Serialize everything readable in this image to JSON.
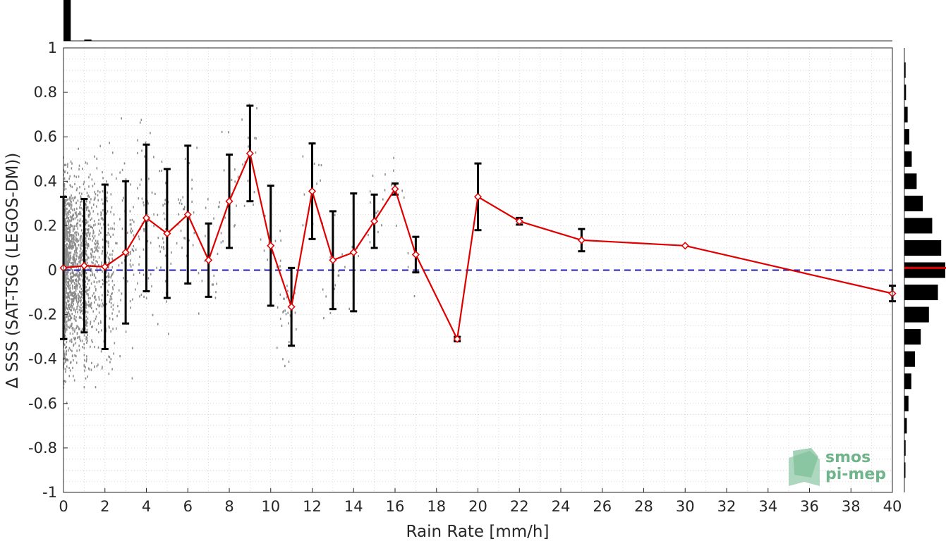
{
  "chart_data": {
    "type": "scatter",
    "xlabel": "Rain Rate [mm/h]",
    "ylabel": "Δ SSS (SAT-TSG (LEGOS-DM))",
    "xlim": [
      0,
      40
    ],
    "ylim": [
      -1,
      1
    ],
    "xticks": [
      "0",
      "2",
      "4",
      "6",
      "8",
      "10",
      "12",
      "14",
      "16",
      "18",
      "20",
      "22",
      "24",
      "26",
      "28",
      "30",
      "32",
      "34",
      "36",
      "38",
      "40"
    ],
    "yticks": [
      "1",
      "0.8",
      "0.6",
      "0.4",
      "0.2",
      "0",
      "-0.2",
      "-0.4",
      "-0.6",
      "-0.8",
      "-1"
    ],
    "grid": true,
    "reference_line": {
      "y": 0,
      "style": "dashed",
      "color": "#1f1fb4"
    },
    "mean_series": {
      "color": "#e00000",
      "marker": "diamond",
      "points": [
        {
          "x": 0,
          "y": 0.01,
          "err": 0.32
        },
        {
          "x": 1,
          "y": 0.02,
          "err": 0.3
        },
        {
          "x": 2,
          "y": 0.015,
          "err": 0.37
        },
        {
          "x": 3,
          "y": 0.08,
          "err": 0.32
        },
        {
          "x": 4,
          "y": 0.235,
          "err": 0.33
        },
        {
          "x": 5,
          "y": 0.165,
          "err": 0.29
        },
        {
          "x": 6,
          "y": 0.25,
          "err": 0.31
        },
        {
          "x": 7,
          "y": 0.045,
          "err": 0.165
        },
        {
          "x": 8,
          "y": 0.31,
          "err": 0.21
        },
        {
          "x": 9,
          "y": 0.525,
          "err": 0.215
        },
        {
          "x": 10,
          "y": 0.11,
          "err": 0.27
        },
        {
          "x": 11,
          "y": -0.165,
          "err": 0.175
        },
        {
          "x": 12,
          "y": 0.355,
          "err": 0.215
        },
        {
          "x": 13,
          "y": 0.045,
          "err": 0.22
        },
        {
          "x": 14,
          "y": 0.08,
          "err": 0.265
        },
        {
          "x": 15,
          "y": 0.22,
          "err": 0.12
        },
        {
          "x": 16,
          "y": 0.365,
          "err": 0.025
        },
        {
          "x": 17,
          "y": 0.07,
          "err": 0.08
        },
        {
          "x": 19,
          "y": -0.31,
          "err": 0.01
        },
        {
          "x": 20,
          "y": 0.33,
          "err": 0.15
        },
        {
          "x": 22,
          "y": 0.22,
          "err": 0.015
        },
        {
          "x": 25,
          "y": 0.135,
          "err": 0.05
        },
        {
          "x": 30,
          "y": 0.11,
          "err": 0.0
        },
        {
          "x": 40,
          "y": -0.105,
          "err": 0.035
        }
      ]
    },
    "scatter_color": "#8c8c8c",
    "top_histogram": {
      "bins_x": [
        0,
        1,
        2,
        3
      ],
      "counts": [
        1.0,
        0.03,
        0.0,
        0.0
      ]
    },
    "right_histogram": {
      "bin_centers": [
        0.9,
        0.8,
        0.7,
        0.6,
        0.5,
        0.4,
        0.3,
        0.2,
        0.1,
        0.0,
        -0.1,
        -0.2,
        -0.3,
        -0.4,
        -0.5,
        -0.6,
        -0.7,
        -0.8,
        -0.9
      ],
      "counts": [
        0.03,
        0.04,
        0.08,
        0.12,
        0.18,
        0.3,
        0.45,
        0.68,
        0.9,
        1.0,
        0.82,
        0.6,
        0.4,
        0.26,
        0.17,
        0.1,
        0.06,
        0.03,
        0.02
      ],
      "mean_line": 0.01,
      "mean_color": "#e00000"
    }
  },
  "logo": {
    "line1": "smos",
    "line2": "pi-mep"
  }
}
